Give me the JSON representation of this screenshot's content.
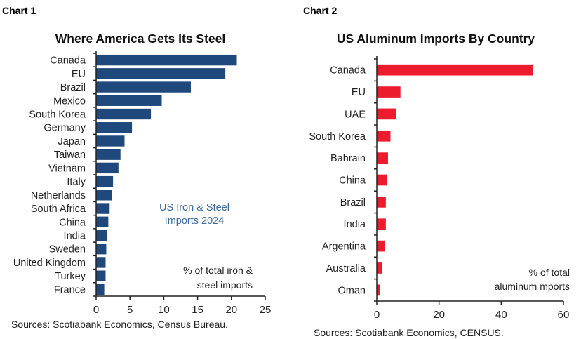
{
  "chart_data": [
    {
      "type": "bar",
      "orientation": "horizontal",
      "label": "Chart 1",
      "title": "Where America Gets Its Steel",
      "annotation": "US Iron & Steel Imports 2024",
      "annotation_lines": [
        "US Iron & Steel",
        "Imports 2024"
      ],
      "unit_note_lines": [
        "% of total iron &",
        "steel imports"
      ],
      "source": "Sources: Scotiabank Economics, Census Bureau.",
      "categories": [
        "Canada",
        "EU",
        "Brazil",
        "Mexico",
        "South Korea",
        "Germany",
        "Japan",
        "Taiwan",
        "Vietnam",
        "Italy",
        "Netherlands",
        "South Africa",
        "China",
        "India",
        "Sweden",
        "United Kingdom",
        "Turkey",
        "France"
      ],
      "values": [
        20.8,
        19.1,
        14.0,
        9.7,
        8.1,
        5.3,
        4.2,
        3.6,
        3.3,
        2.5,
        2.3,
        2.0,
        1.8,
        1.6,
        1.5,
        1.4,
        1.4,
        1.2
      ],
      "xlim": [
        0,
        25
      ],
      "xticks": [
        0,
        5,
        10,
        15,
        20,
        25
      ],
      "grid": false,
      "color": "#1f487c",
      "annotation_color": "#3a6aa3"
    },
    {
      "type": "bar",
      "orientation": "horizontal",
      "label": "Chart 2",
      "title": "US Aluminum Imports By Country",
      "unit_note_lines": [
        "% of total",
        "aluminum mports"
      ],
      "source": "Sources: Scotiabank Economics, CENSUS.",
      "categories": [
        "Canada",
        "EU",
        "UAE",
        "South Korea",
        "Bahrain",
        "China",
        "Brazil",
        "India",
        "Argentina",
        "Australia",
        "Oman"
      ],
      "values": [
        50.3,
        7.6,
        6.1,
        4.4,
        3.6,
        3.4,
        2.9,
        2.9,
        2.6,
        1.7,
        1.1
      ],
      "xlim": [
        0,
        60
      ],
      "xticks": [
        0,
        20,
        40,
        60
      ],
      "grid": false,
      "color": "#ec1c2e"
    }
  ]
}
